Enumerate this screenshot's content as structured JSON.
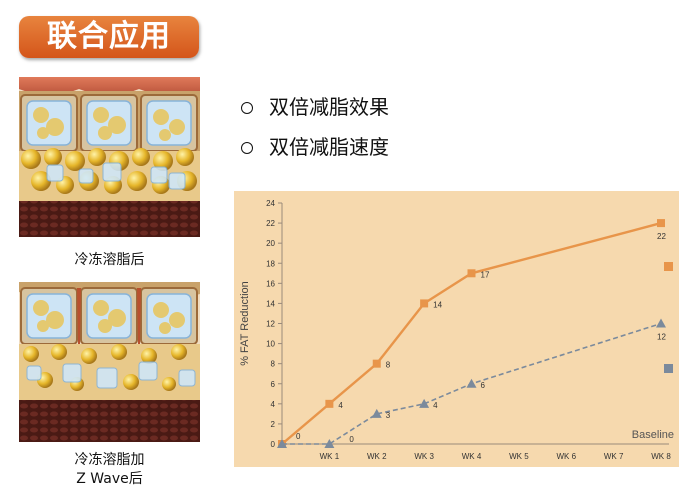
{
  "header": {
    "title": "联合应用"
  },
  "images": {
    "top_caption": "冷冻溶脂后",
    "bottom_caption_line1": "冷冻溶脂加",
    "bottom_caption_line2": "Z Wave后"
  },
  "bullets": [
    "双倍减脂效果",
    "双倍减脂速度"
  ],
  "colors": {
    "orange": "#e8954a",
    "title_bg": "#d96020",
    "chart_bg": "#f6d9ae",
    "gray": "#7b8a9c",
    "gridline": "#9a8a7a"
  },
  "chart_data": {
    "type": "line",
    "ylabel": "% FAT Reduction",
    "xlabel": "",
    "categories": [
      "",
      "WK 1",
      "WK 2",
      "WK 3",
      "WK 4",
      "WK 5",
      "WK 6",
      "WK 7",
      "WK 8"
    ],
    "ylim": [
      0,
      24
    ],
    "yticks": [
      0,
      2,
      4,
      6,
      8,
      10,
      12,
      14,
      16,
      18,
      20,
      22,
      24
    ],
    "baseline_label": "Baseline",
    "series": [
      {
        "style": "solid",
        "marker": "square",
        "color": "#e8954a",
        "points": [
          {
            "i": 0,
            "y": 0
          },
          {
            "i": 1,
            "y": 4
          },
          {
            "i": 2,
            "y": 8
          },
          {
            "i": 3,
            "y": 14
          },
          {
            "i": 4,
            "y": 17
          },
          {
            "i": 8,
            "y": 22
          }
        ],
        "labels": [
          "0",
          "4",
          "8",
          "14",
          "17",
          "22"
        ]
      },
      {
        "style": "dashed",
        "marker": "triangle",
        "color": "#7b8a9c",
        "points": [
          {
            "i": 0,
            "y": 0
          },
          {
            "i": 1,
            "y": 0
          },
          {
            "i": 2,
            "y": 3
          },
          {
            "i": 3,
            "y": 4
          },
          {
            "i": 4,
            "y": 6
          },
          {
            "i": 8,
            "y": 12
          }
        ],
        "labels": [
          "",
          "0",
          "3",
          "4",
          "6",
          "12"
        ]
      }
    ],
    "legend_markers": [
      {
        "shape": "square",
        "color": "#e8954a"
      },
      {
        "shape": "square",
        "color": "#7b8a9c"
      }
    ]
  }
}
